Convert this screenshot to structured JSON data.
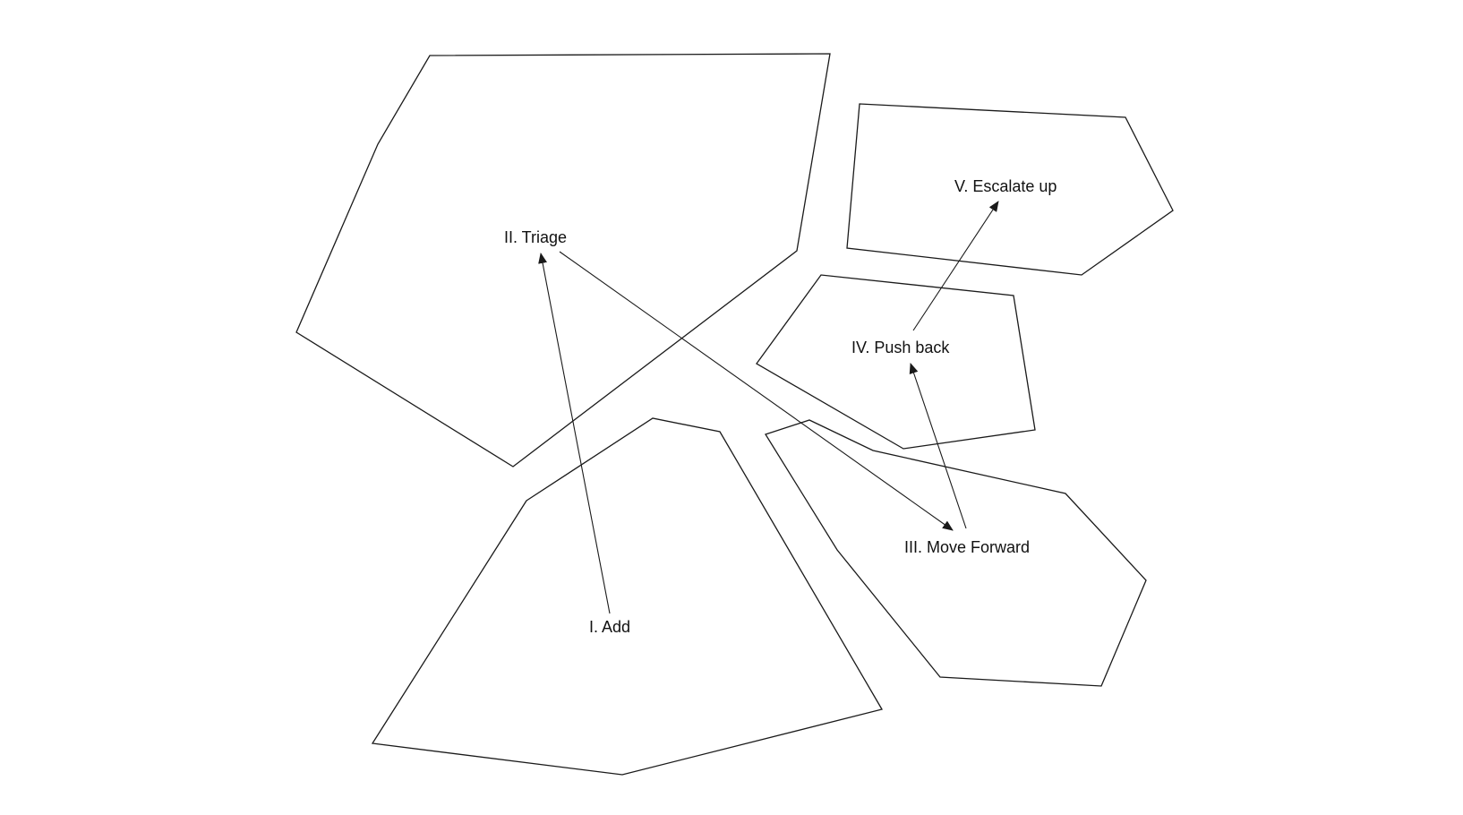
{
  "diagram": {
    "nodes": [
      {
        "id": "add",
        "label": "I. Add"
      },
      {
        "id": "triage",
        "label": "II. Triage"
      },
      {
        "id": "move_forward",
        "label": "III. Move Forward"
      },
      {
        "id": "push_back",
        "label": "IV. Push back"
      },
      {
        "id": "escalate_up",
        "label": "V. Escalate up"
      }
    ],
    "edges": [
      {
        "from": "add",
        "to": "triage"
      },
      {
        "from": "triage",
        "to": "move_forward"
      },
      {
        "from": "move_forward",
        "to": "push_back"
      },
      {
        "from": "push_back",
        "to": "escalate_up"
      }
    ]
  },
  "colors": {
    "line": "#1a1a1a",
    "background": "#ffffff"
  }
}
